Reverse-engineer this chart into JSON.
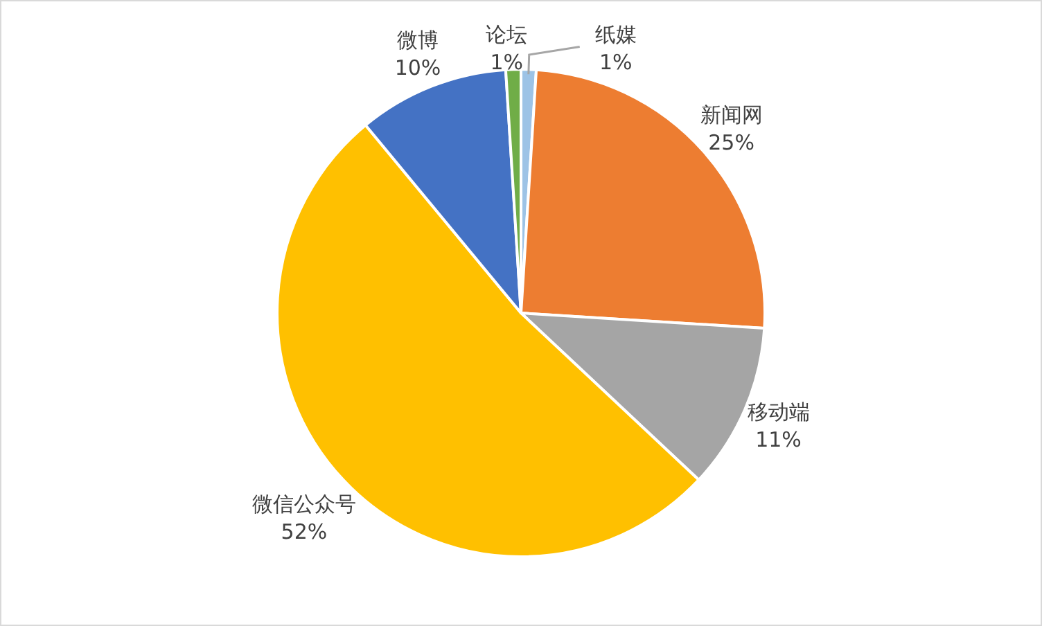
{
  "chart_data": {
    "type": "pie",
    "categories": [
      "纸媒",
      "新闻网",
      "移动端",
      "微信公众号",
      "微博",
      "论坛"
    ],
    "values": [
      1,
      25,
      11,
      52,
      10,
      1
    ],
    "colors": [
      "#9dc3e6",
      "#ed7d31",
      "#a5a5a5",
      "#ffc000",
      "#4472c4",
      "#70ad47"
    ],
    "value_labels": [
      "1%",
      "25%",
      "11%",
      "52%",
      "10%",
      "1%"
    ]
  }
}
